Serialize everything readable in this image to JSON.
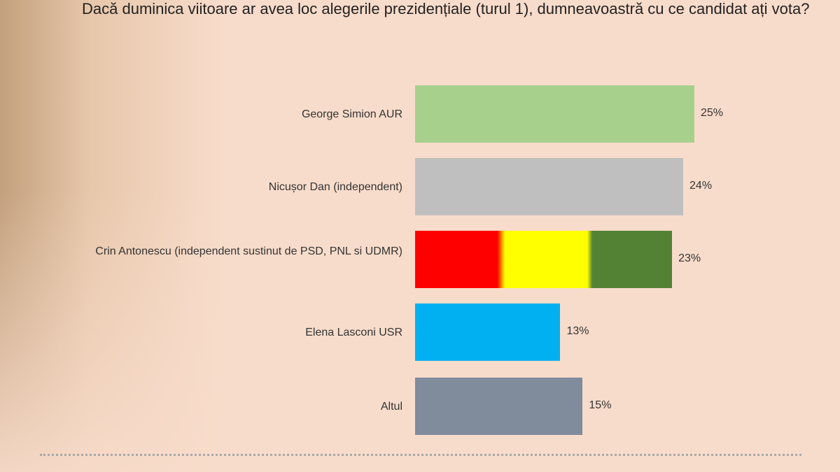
{
  "chart_data": {
    "type": "bar",
    "orientation": "horizontal",
    "title": "Dacă duminica viitoare ar avea loc alegerile prezidențiale (turul 1), dumneavoastră cu ce candidat ați vota?",
    "categories": [
      "George Simion AUR",
      "Nicușor Dan (independent)",
      "Crin Antonescu (independent sustinut de PSD, PNL si UDMR)",
      "Elena Lasconi USR",
      "Altul"
    ],
    "values": [
      25,
      24,
      23,
      13,
      15
    ],
    "value_labels": [
      "25%",
      "24%",
      "23%",
      "13%",
      "15%"
    ],
    "unit": "%",
    "colors": [
      "#a8d08d",
      "#bfbfbf",
      [
        "#ff0000",
        "#ffff00",
        "#548235"
      ],
      "#00b0f0",
      "#808b9c"
    ],
    "xlim": [
      0,
      25
    ],
    "grid": false,
    "legend": "none"
  }
}
